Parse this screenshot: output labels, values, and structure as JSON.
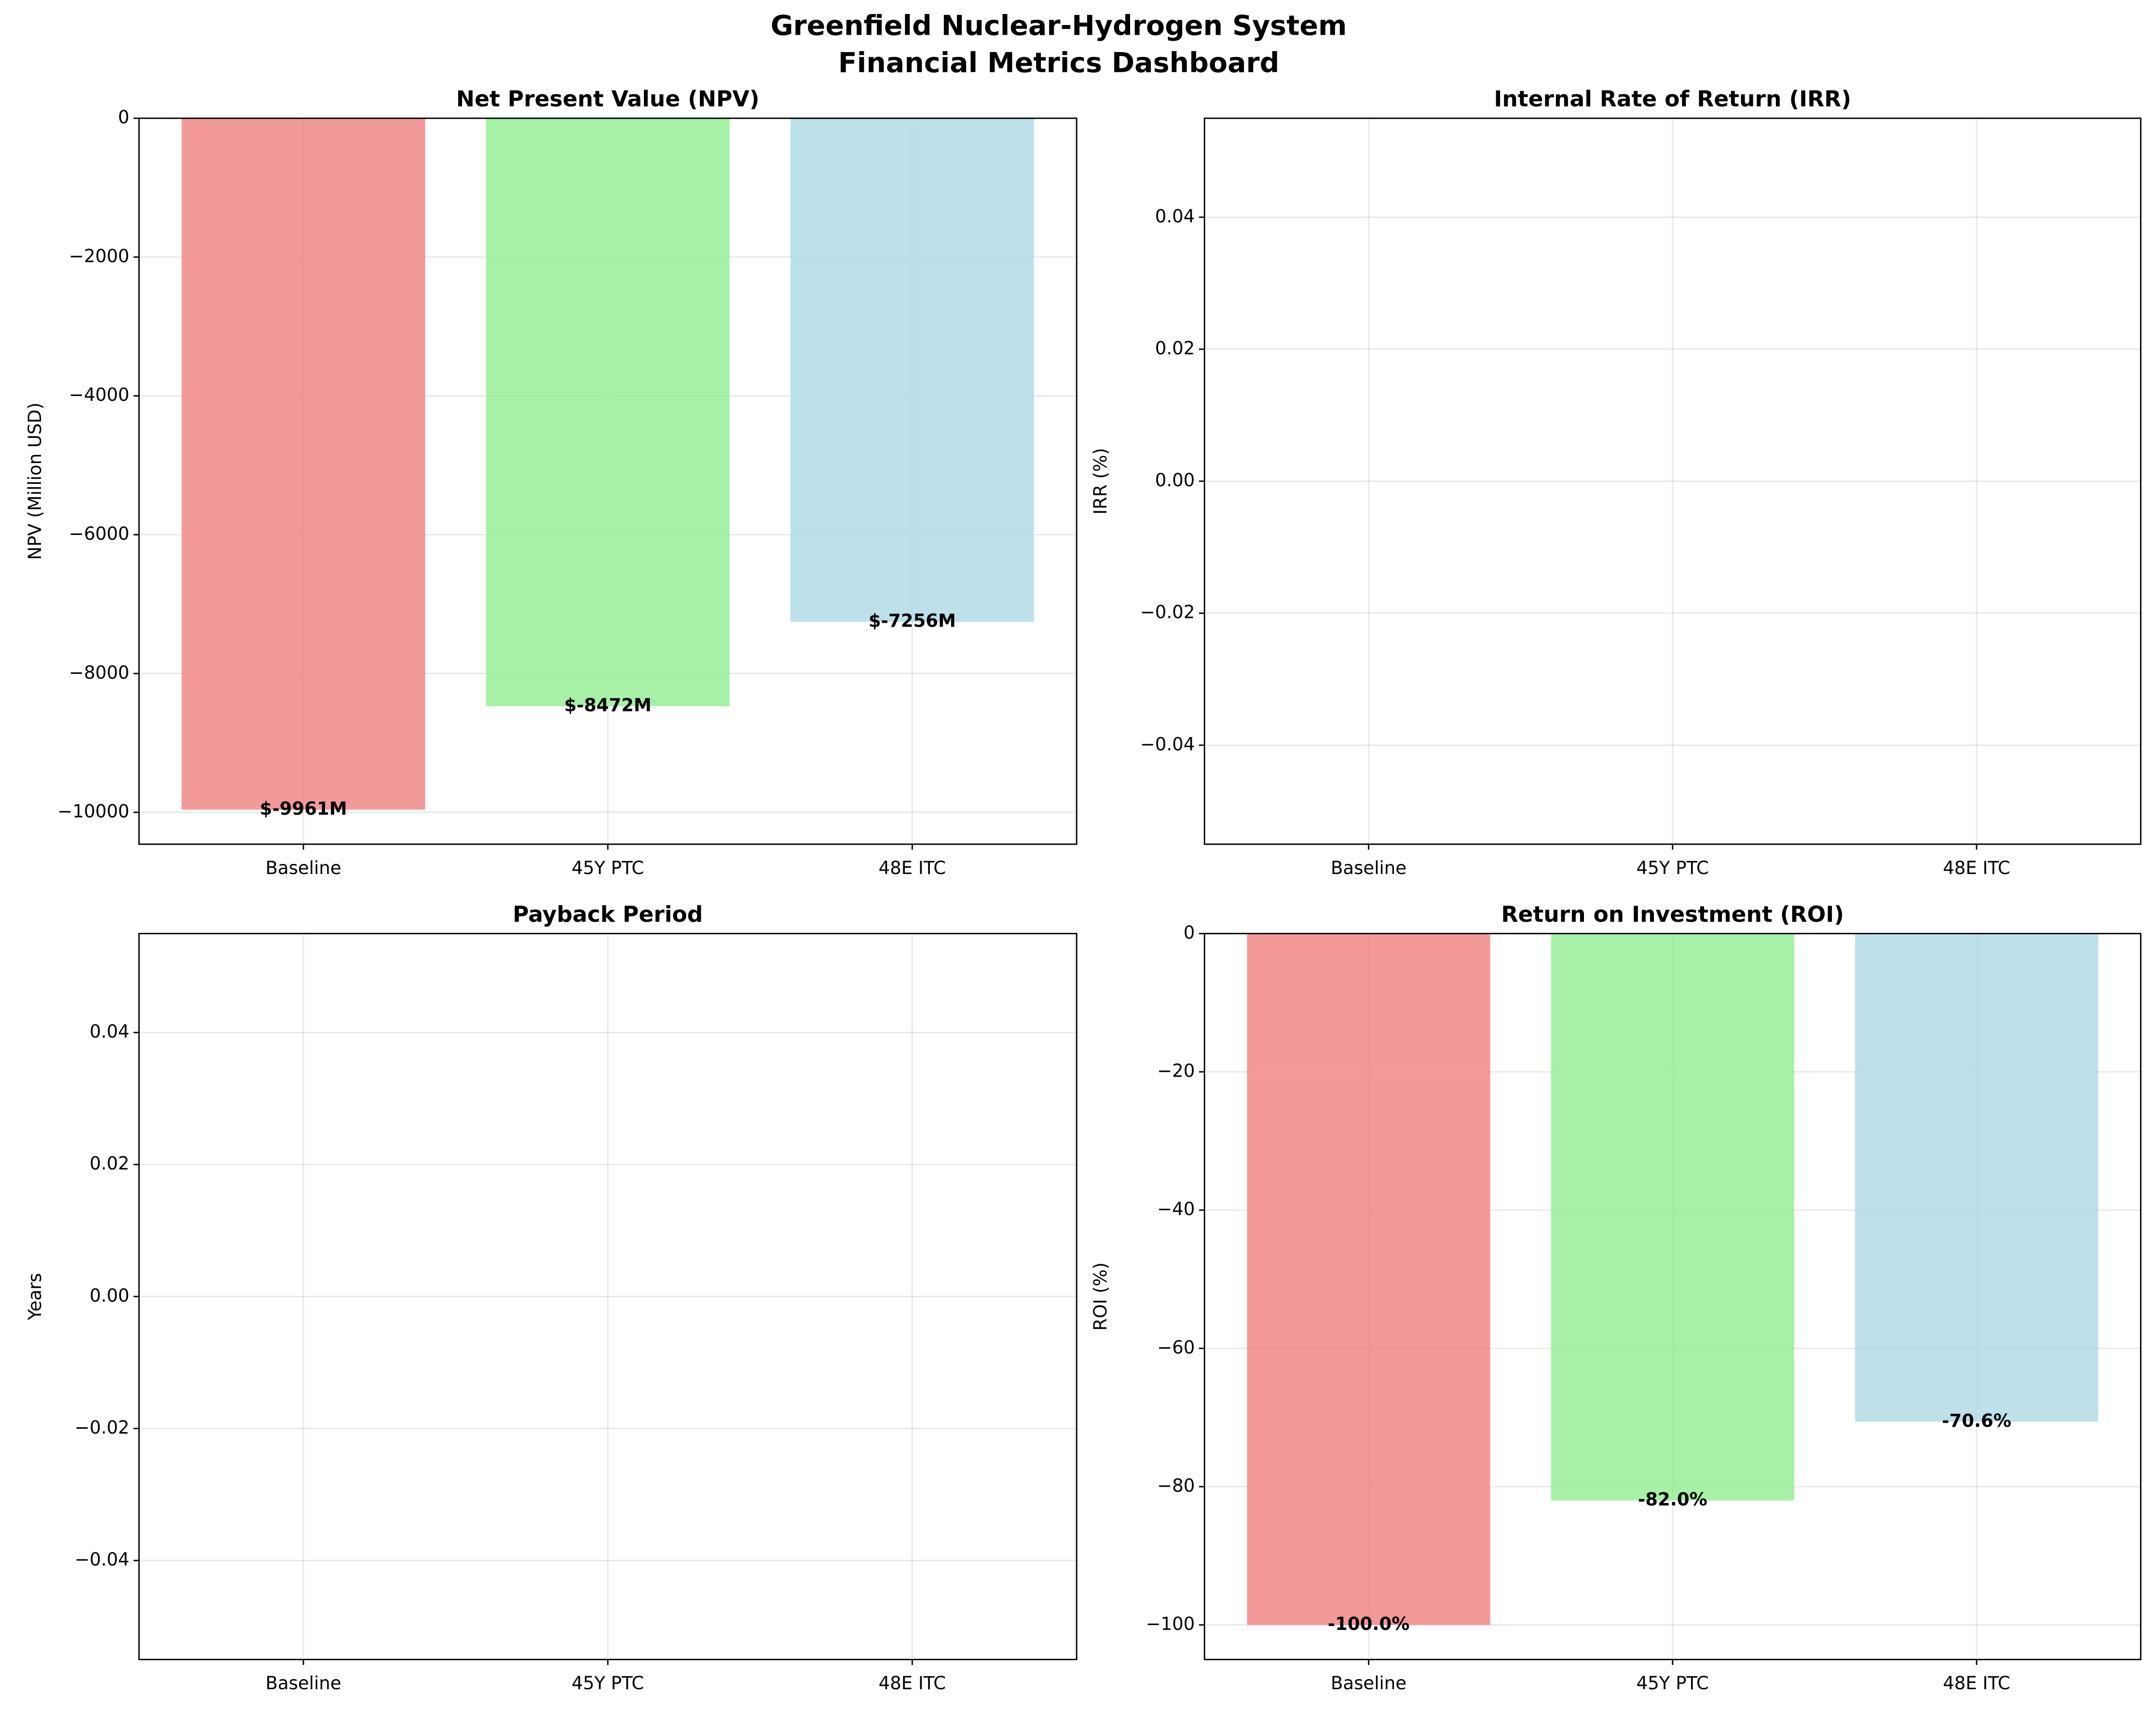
{
  "title": [
    "Greenfield Nuclear-Hydrogen System",
    "Financial Metrics Dashboard"
  ],
  "chart_data": [
    {
      "type": "bar",
      "title": "Net Present Value (NPV)",
      "ylabel": "NPV (Million USD)",
      "categories": [
        "Baseline",
        "45Y PTC",
        "48E ITC"
      ],
      "values": [
        -9961,
        -8472,
        -7256
      ],
      "value_labels": [
        "$-9961M",
        "$-8472M",
        "$-7256M"
      ],
      "colors": [
        "#f08080",
        "#90ee90",
        "#add8e6"
      ],
      "ylim": [
        -10459,
        0
      ],
      "yticks": [
        0,
        {
          "value": -2000,
          "label": "−2000"
        },
        {
          "value": -4000,
          "label": "−4000"
        },
        {
          "value": -6000,
          "label": "−6000"
        },
        {
          "value": -8000,
          "label": "−8000"
        },
        {
          "value": -10000,
          "label": "−10000"
        }
      ],
      "grid": true
    },
    {
      "type": "bar",
      "title": "Internal Rate of Return (IRR)",
      "ylabel": "IRR (%)",
      "categories": [
        "Baseline",
        "45Y PTC",
        "48E ITC"
      ],
      "values": [
        null,
        null,
        null
      ],
      "colors": [
        "#f08080",
        "#90ee90",
        "#add8e6"
      ],
      "ylim": [
        -0.055,
        0.055
      ],
      "yticks": [
        {
          "value": -0.04,
          "label": "−0.04"
        },
        {
          "value": -0.02,
          "label": "−0.02"
        },
        {
          "value": 0,
          "label": "0.00"
        },
        0.02,
        0.04
      ],
      "grid": true
    },
    {
      "type": "bar",
      "title": "Payback Period",
      "ylabel": "Years",
      "categories": [
        "Baseline",
        "45Y PTC",
        "48E ITC"
      ],
      "values": [
        null,
        null,
        null
      ],
      "colors": [
        "#f08080",
        "#90ee90",
        "#add8e6"
      ],
      "ylim": [
        -0.055,
        0.055
      ],
      "yticks": [
        {
          "value": -0.04,
          "label": "−0.04"
        },
        {
          "value": -0.02,
          "label": "−0.02"
        },
        {
          "value": 0,
          "label": "0.00"
        },
        0.02,
        0.04
      ],
      "grid": true
    },
    {
      "type": "bar",
      "title": "Return on Investment (ROI)",
      "ylabel": "ROI (%)",
      "categories": [
        "Baseline",
        "45Y PTC",
        "48E ITC"
      ],
      "values": [
        -100,
        -82.0,
        -70.6
      ],
      "value_labels": [
        "-100.0%",
        "-82.0%",
        "-70.6%"
      ],
      "colors": [
        "#f08080",
        "#90ee90",
        "#add8e6"
      ],
      "ylim": [
        -105,
        0
      ],
      "yticks": [
        0,
        {
          "value": -20,
          "label": "−20"
        },
        {
          "value": -40,
          "label": "−40"
        },
        {
          "value": -60,
          "label": "−60"
        },
        {
          "value": -80,
          "label": "−80"
        },
        {
          "value": -100,
          "label": "−100"
        }
      ],
      "grid": true
    }
  ]
}
